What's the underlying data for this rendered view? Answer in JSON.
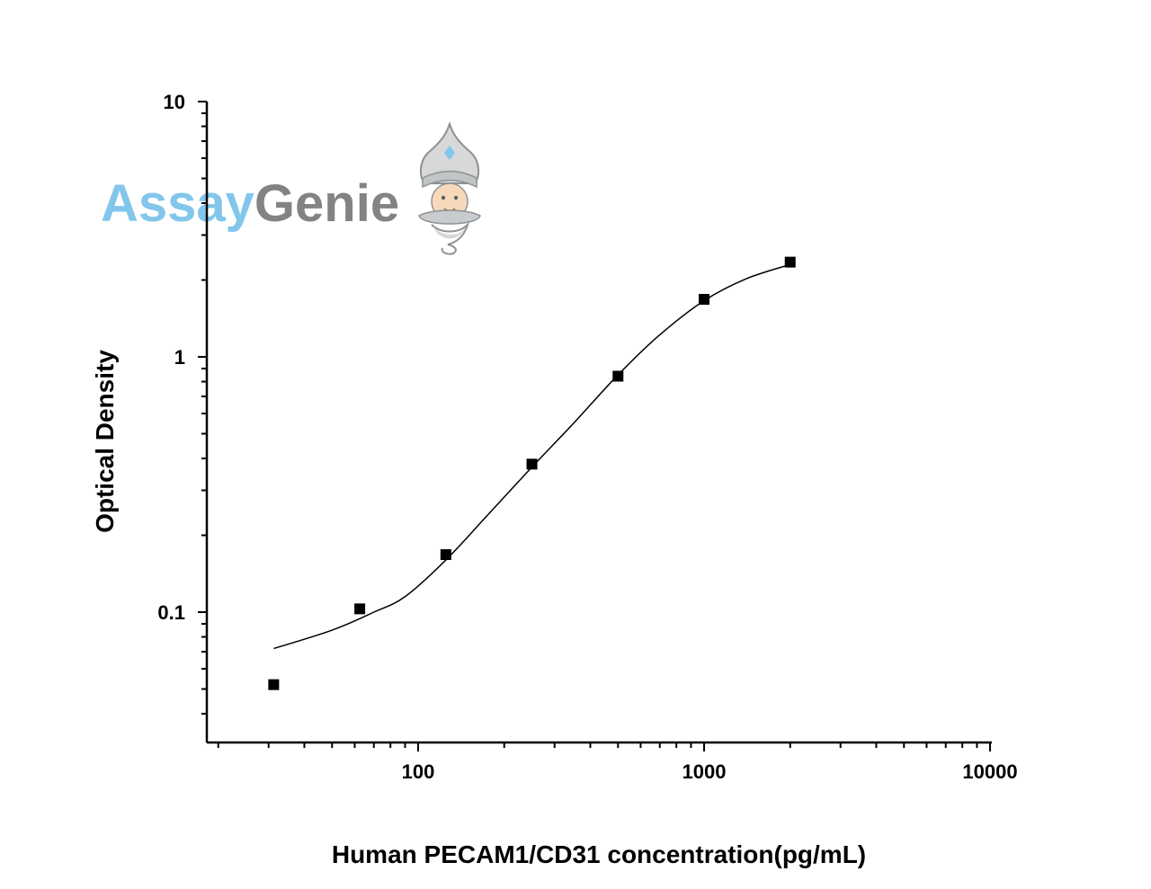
{
  "chart_data": {
    "type": "scatter",
    "title": "",
    "xlabel": "Human PECAM1/CD31 concentration(pg/mL)",
    "ylabel": "Optical Density",
    "x_scale": "log",
    "y_scale": "log",
    "xlim": [
      20,
      10000
    ],
    "ylim": [
      0.035,
      10
    ],
    "x_ticks": [
      "100",
      "1000",
      "10000"
    ],
    "y_ticks": [
      "10",
      "1",
      "0.1"
    ],
    "grid": false,
    "series": [
      {
        "kind": "points",
        "marker": "square",
        "color": "#000000",
        "x": [
          31.25,
          62.5,
          125,
          250,
          500,
          1000,
          2000
        ],
        "y": [
          0.052,
          0.103,
          0.168,
          0.38,
          0.84,
          1.68,
          2.35
        ]
      },
      {
        "kind": "fit-curve",
        "color": "#000000",
        "x": [
          31.25,
          50,
          70,
          90,
          125,
          175,
          250,
          350,
          500,
          700,
          1000,
          1400,
          2000
        ],
        "y": [
          0.072,
          0.085,
          0.1,
          0.115,
          0.16,
          0.24,
          0.37,
          0.55,
          0.85,
          1.22,
          1.66,
          2.02,
          2.3
        ]
      }
    ]
  },
  "logo": {
    "part1": "Assay",
    "part2": "Genie",
    "icon": "genie-mascot-icon",
    "colors": {
      "assay": "#7cc4ea",
      "genie": "#7d7d7d"
    }
  }
}
